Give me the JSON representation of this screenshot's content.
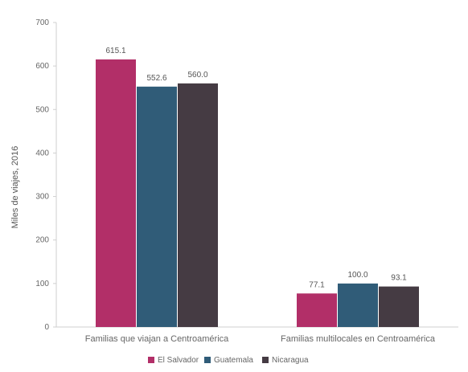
{
  "chart_data": {
    "type": "bar",
    "categories": [
      "Familias que viajan a Centroamérica",
      "Familias multilocales en Centroamérica"
    ],
    "series": [
      {
        "name": "El Salvador",
        "values": [
          615.1,
          77.1
        ],
        "labels": [
          "615.1",
          "77.1"
        ],
        "color": "#b22f68"
      },
      {
        "name": "Guatemala",
        "values": [
          552.6,
          100.0
        ],
        "labels": [
          "552.6",
          "100.0"
        ],
        "color": "#305c78"
      },
      {
        "name": "Nicaragua",
        "values": [
          560.0,
          93.1
        ],
        "labels": [
          "560.0",
          "93.1"
        ],
        "color": "#453b43"
      }
    ],
    "ylabel": "Miles de viajes, 2016",
    "ylim": [
      0,
      700
    ],
    "yticks": [
      0,
      100,
      200,
      300,
      400,
      500,
      600,
      700
    ],
    "legend_position": "bottom",
    "grid": false
  }
}
